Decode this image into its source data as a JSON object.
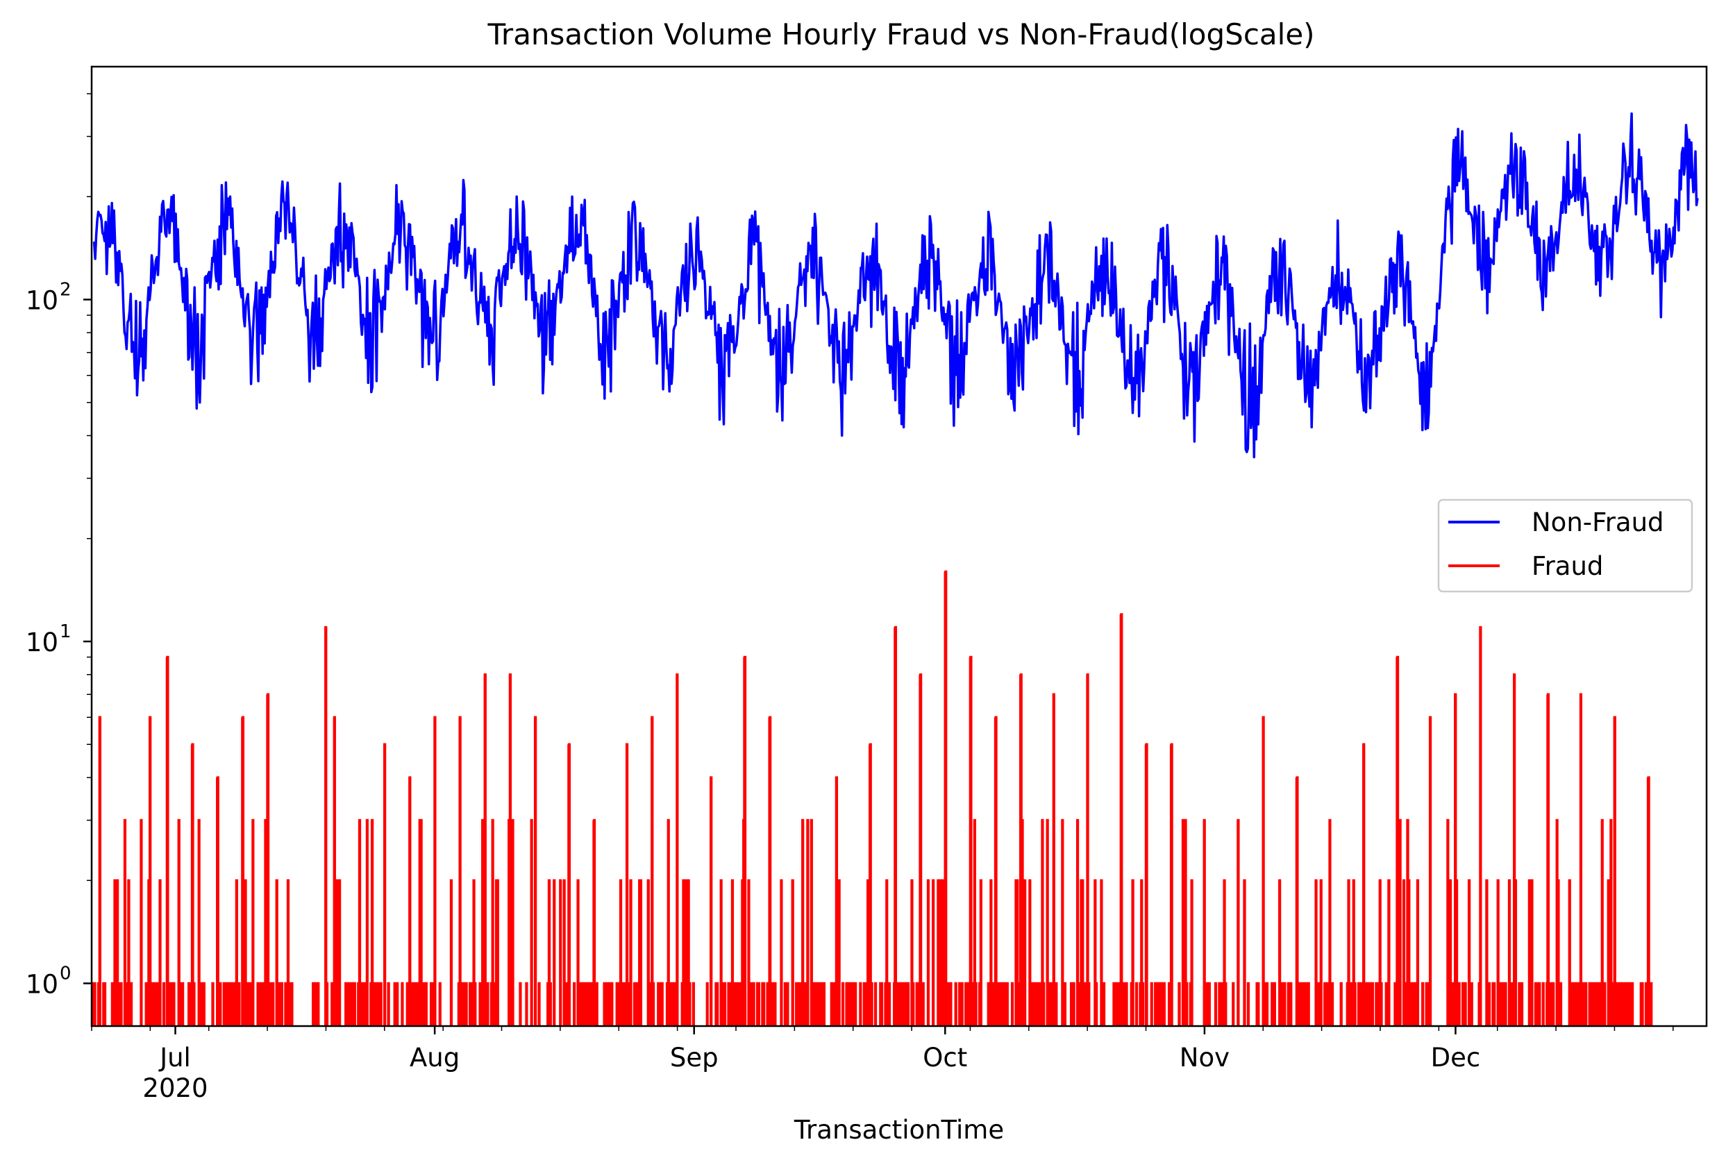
{
  "chart_data": {
    "type": "line",
    "title": "Transaction Volume Hourly Fraud vs Non-Fraud(logScale)",
    "xlabel": "TransactionTime",
    "ylabel": "",
    "yscale": "log",
    "xlim": [
      "2020-06-21",
      "2020-12-31"
    ],
    "ylim": [
      0.75,
      480
    ],
    "x_ticks": [
      {
        "date": "2020-07-01",
        "label": "Jul",
        "sublabel": "2020"
      },
      {
        "date": "2020-08-01",
        "label": "Aug",
        "sublabel": ""
      },
      {
        "date": "2020-09-01",
        "label": "Sep",
        "sublabel": ""
      },
      {
        "date": "2020-10-01",
        "label": "Oct",
        "sublabel": ""
      },
      {
        "date": "2020-11-01",
        "label": "Nov",
        "sublabel": ""
      },
      {
        "date": "2020-12-01",
        "label": "Dec",
        "sublabel": ""
      }
    ],
    "y_ticks": [
      {
        "value": 1,
        "base": "10",
        "exp": "0"
      },
      {
        "value": 10,
        "base": "10",
        "exp": "1"
      },
      {
        "value": 100,
        "base": "10",
        "exp": "2"
      }
    ],
    "legend": {
      "position": "center-right"
    },
    "series": [
      {
        "name": "Non-Fraud",
        "color": "#0000ff",
        "x": [
          "2020-06-21",
          "2020-06-25",
          "2020-06-29",
          "2020-07-03",
          "2020-07-07",
          "2020-07-11",
          "2020-07-15",
          "2020-07-19",
          "2020-07-23",
          "2020-07-27",
          "2020-07-31",
          "2020-08-04",
          "2020-08-08",
          "2020-08-12",
          "2020-08-16",
          "2020-08-20",
          "2020-08-24",
          "2020-08-28",
          "2020-09-01",
          "2020-09-05",
          "2020-09-09",
          "2020-09-13",
          "2020-09-17",
          "2020-09-21",
          "2020-09-25",
          "2020-09-29",
          "2020-10-03",
          "2020-10-07",
          "2020-10-11",
          "2020-10-15",
          "2020-10-19",
          "2020-10-23",
          "2020-10-27",
          "2020-10-31",
          "2020-11-04",
          "2020-11-08",
          "2020-11-12",
          "2020-11-16",
          "2020-11-20",
          "2020-11-24",
          "2020-11-28",
          "2020-12-02",
          "2020-12-06",
          "2020-12-10",
          "2020-12-14",
          "2020-12-18",
          "2020-12-22",
          "2020-12-26",
          "2020-12-30"
        ],
        "y": [
          150,
          95,
          130,
          115,
          120,
          110,
          125,
          120,
          115,
          120,
          110,
          125,
          120,
          110,
          120,
          115,
          105,
          110,
          100,
          95,
          90,
          100,
          95,
          90,
          95,
          90,
          95,
          90,
          85,
          90,
          95,
          85,
          90,
          85,
          80,
          85,
          90,
          85,
          90,
          85,
          90,
          190,
          170,
          180,
          165,
          175,
          185,
          170,
          180
        ],
        "min": [
          50,
          55,
          48,
          46,
          50,
          52,
          55,
          48,
          50,
          45,
          48,
          50,
          52,
          48,
          50,
          52,
          50,
          48,
          40,
          42,
          45,
          42,
          40,
          38,
          42,
          40,
          40,
          38,
          40,
          42,
          38,
          40,
          35,
          38,
          36,
          32,
          35,
          38,
          36,
          40,
          42,
          88,
          90,
          95,
          90,
          92,
          95,
          88,
          90
        ],
        "max": [
          230,
          210,
          220,
          245,
          220,
          215,
          225,
          210,
          230,
          215,
          225,
          230,
          220,
          215,
          225,
          220,
          200,
          220,
          220,
          185,
          180,
          175,
          180,
          170,
          185,
          175,
          180,
          185,
          175,
          180,
          170,
          175,
          185,
          180,
          175,
          170,
          190,
          180,
          170,
          175,
          200,
          340,
          330,
          345,
          320,
          330,
          350,
          340,
          320
        ]
      },
      {
        "name": "Fraud",
        "color": "#ff0000",
        "x": [
          "2020-06-22",
          "2020-06-25",
          "2020-06-28",
          "2020-06-30",
          "2020-07-03",
          "2020-07-06",
          "2020-07-09",
          "2020-07-12",
          "2020-07-16",
          "2020-07-19",
          "2020-07-20",
          "2020-07-23",
          "2020-07-26",
          "2020-07-29",
          "2020-08-01",
          "2020-08-04",
          "2020-08-07",
          "2020-08-10",
          "2020-08-13",
          "2020-08-17",
          "2020-08-20",
          "2020-08-24",
          "2020-08-27",
          "2020-08-30",
          "2020-09-03",
          "2020-09-07",
          "2020-09-10",
          "2020-09-14",
          "2020-09-18",
          "2020-09-22",
          "2020-09-25",
          "2020-09-28",
          "2020-10-01",
          "2020-10-04",
          "2020-10-07",
          "2020-10-10",
          "2020-10-14",
          "2020-10-18",
          "2020-10-22",
          "2020-10-25",
          "2020-10-28",
          "2020-11-01",
          "2020-11-05",
          "2020-11-08",
          "2020-11-12",
          "2020-11-16",
          "2020-11-20",
          "2020-11-24",
          "2020-11-28",
          "2020-12-01",
          "2020-12-04",
          "2020-12-08",
          "2020-12-12",
          "2020-12-16",
          "2020-12-20",
          "2020-12-24"
        ],
        "y": [
          6,
          3,
          6,
          9,
          5,
          4,
          6,
          7,
          0,
          11,
          6,
          3,
          5,
          4,
          6,
          6,
          8,
          8,
          6,
          5,
          3,
          5,
          6,
          8,
          4,
          9,
          6,
          3,
          4,
          5,
          11,
          8,
          16,
          9,
          6,
          8,
          7,
          8,
          12,
          5,
          5,
          3,
          3,
          6,
          4,
          3,
          5,
          9,
          6,
          7,
          11,
          8,
          7,
          7,
          6,
          4
        ]
      }
    ]
  }
}
